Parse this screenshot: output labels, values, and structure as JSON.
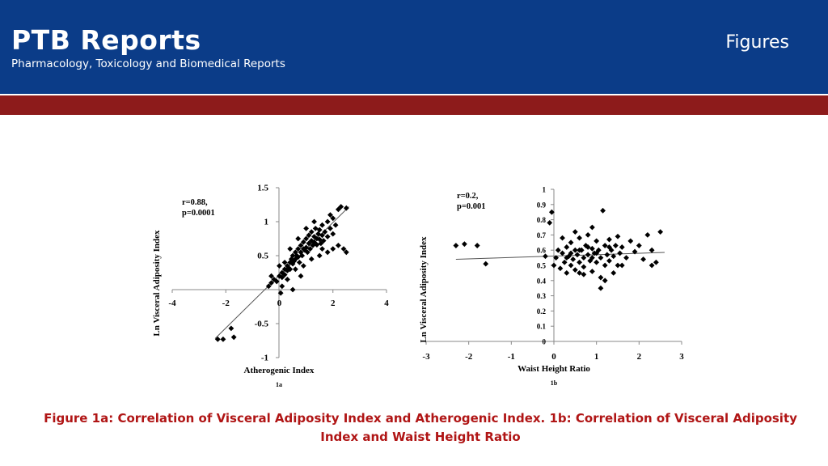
{
  "header": {
    "brand": "PTB Reports",
    "subtitle": "Pharmacology, Toxicology and Biomedical Reports",
    "section": "Figures"
  },
  "caption": "Figure 1a: Correlation of Visceral Adiposity Index and Atherogenic Index. 1b: Correlation of Visceral Adiposity Index and Waist Height Ratio",
  "colors": {
    "header_bg": "#0b3c88",
    "band": "#8d1b1b",
    "caption": "#b01515"
  },
  "chart_data": [
    {
      "type": "scatter",
      "panel_label": "1a",
      "xlabel": "Atherogenic Index",
      "ylabel": "Ln Visceral Adiposity Index",
      "annotation": [
        "r=0.88,",
        "p=0.0001"
      ],
      "xlim": [
        -4,
        4
      ],
      "ylim": [
        -1,
        1.5
      ],
      "xticks": [
        -4,
        -2,
        0,
        2,
        4
      ],
      "xtick_labels": [
        "-4",
        "-2",
        "0",
        "2",
        "4"
      ],
      "yticks": [
        -1,
        -0.5,
        0.5,
        1,
        1.5
      ],
      "ytick_labels": [
        "-1",
        "-0.5",
        "0.5",
        "1",
        "1.5"
      ],
      "trendline": {
        "x": [
          -2.4,
          2.6
        ],
        "y": [
          -0.72,
          1.22
        ]
      },
      "points": [
        [
          -2.3,
          -0.73
        ],
        [
          -2.1,
          -0.73
        ],
        [
          -1.8,
          -0.57
        ],
        [
          -1.7,
          -0.7
        ],
        [
          -0.4,
          0.05
        ],
        [
          -0.3,
          0.1
        ],
        [
          -0.2,
          0.15
        ],
        [
          -0.1,
          0.12
        ],
        [
          0.0,
          0.2
        ],
        [
          0.1,
          0.18
        ],
        [
          0.1,
          0.25
        ],
        [
          0.2,
          0.3
        ],
        [
          0.2,
          0.22
        ],
        [
          0.3,
          0.28
        ],
        [
          0.3,
          0.35
        ],
        [
          0.35,
          0.32
        ],
        [
          0.4,
          0.4
        ],
        [
          0.4,
          0.3
        ],
        [
          0.45,
          0.45
        ],
        [
          0.5,
          0.38
        ],
        [
          0.5,
          0.5
        ],
        [
          0.55,
          0.42
        ],
        [
          0.6,
          0.55
        ],
        [
          0.6,
          0.45
        ],
        [
          0.65,
          0.5
        ],
        [
          0.7,
          0.6
        ],
        [
          0.7,
          0.48
        ],
        [
          0.75,
          0.4
        ],
        [
          0.8,
          0.65
        ],
        [
          0.8,
          0.55
        ],
        [
          0.85,
          0.5
        ],
        [
          0.9,
          0.7
        ],
        [
          0.9,
          0.6
        ],
        [
          0.95,
          0.58
        ],
        [
          1.0,
          0.75
        ],
        [
          1.0,
          0.62
        ],
        [
          1.05,
          0.55
        ],
        [
          1.1,
          0.8
        ],
        [
          1.1,
          0.68
        ],
        [
          1.15,
          0.6
        ],
        [
          1.2,
          0.72
        ],
        [
          1.2,
          0.85
        ],
        [
          1.25,
          0.65
        ],
        [
          1.3,
          0.78
        ],
        [
          1.3,
          0.7
        ],
        [
          1.35,
          0.9
        ],
        [
          1.4,
          0.75
        ],
        [
          1.4,
          0.66
        ],
        [
          1.45,
          0.82
        ],
        [
          1.5,
          0.88
        ],
        [
          1.5,
          0.74
        ],
        [
          1.55,
          0.68
        ],
        [
          1.6,
          0.95
        ],
        [
          1.6,
          0.8
        ],
        [
          1.65,
          0.72
        ],
        [
          1.7,
          0.85
        ],
        [
          1.8,
          1.0
        ],
        [
          1.8,
          0.78
        ],
        [
          1.9,
          0.9
        ],
        [
          2.0,
          1.05
        ],
        [
          2.0,
          0.82
        ],
        [
          2.1,
          0.95
        ],
        [
          2.2,
          1.18
        ],
        [
          2.3,
          1.22
        ],
        [
          2.5,
          1.2
        ],
        [
          2.4,
          0.6
        ],
        [
          2.5,
          0.55
        ],
        [
          2.2,
          0.65
        ],
        [
          0.1,
          0.05
        ],
        [
          0.3,
          0.15
        ],
        [
          0.6,
          0.3
        ],
        [
          0.9,
          0.35
        ],
        [
          1.2,
          0.45
        ],
        [
          1.5,
          0.5
        ],
        [
          1.8,
          0.55
        ],
        [
          2.0,
          0.6
        ],
        [
          -0.3,
          0.2
        ],
        [
          0.0,
          0.35
        ],
        [
          0.4,
          0.6
        ],
        [
          0.7,
          0.75
        ],
        [
          1.0,
          0.9
        ],
        [
          1.3,
          1.0
        ],
        [
          1.9,
          1.1
        ],
        [
          0.5,
          0.0
        ],
        [
          0.8,
          0.2
        ],
        [
          0.2,
          0.4
        ],
        [
          1.6,
          0.6
        ],
        [
          0.05,
          -0.05
        ]
      ]
    },
    {
      "type": "scatter",
      "panel_label": "1b",
      "xlabel": "Waist Height Ratio",
      "ylabel": "Ln Visceral Adiposity Index",
      "annotation": [
        "r=0.2,",
        "p=0.001"
      ],
      "xlim": [
        -3,
        3
      ],
      "ylim": [
        0,
        1
      ],
      "xticks": [
        -3,
        -2,
        -1,
        0,
        1,
        2,
        3
      ],
      "xtick_labels": [
        "-3",
        "-2",
        "-1",
        "0",
        "1",
        "2",
        "3"
      ],
      "yticks": [
        0,
        0.1,
        0.2,
        0.3,
        0.4,
        0.5,
        0.6,
        0.7,
        0.8,
        0.9,
        1
      ],
      "ytick_labels": [
        "0",
        "0.1",
        "0.2",
        "0.3",
        "0.4",
        "0.5",
        "0.6",
        "0.7",
        "0.8",
        "0.9",
        "1"
      ],
      "trendline": {
        "x": [
          -2.3,
          2.6
        ],
        "y": [
          0.54,
          0.585
        ]
      },
      "points": [
        [
          -2.3,
          0.63
        ],
        [
          -2.1,
          0.64
        ],
        [
          -1.8,
          0.63
        ],
        [
          -1.6,
          0.51
        ],
        [
          -0.2,
          0.56
        ],
        [
          -0.1,
          0.78
        ],
        [
          -0.05,
          0.85
        ],
        [
          0.0,
          0.5
        ],
        [
          0.05,
          0.55
        ],
        [
          0.1,
          0.6
        ],
        [
          0.15,
          0.48
        ],
        [
          0.2,
          0.58
        ],
        [
          0.25,
          0.52
        ],
        [
          0.3,
          0.62
        ],
        [
          0.3,
          0.45
        ],
        [
          0.35,
          0.56
        ],
        [
          0.4,
          0.5
        ],
        [
          0.4,
          0.65
        ],
        [
          0.45,
          0.54
        ],
        [
          0.5,
          0.6
        ],
        [
          0.5,
          0.47
        ],
        [
          0.55,
          0.57
        ],
        [
          0.6,
          0.52
        ],
        [
          0.6,
          0.68
        ],
        [
          0.65,
          0.6
        ],
        [
          0.7,
          0.55
        ],
        [
          0.7,
          0.49
        ],
        [
          0.75,
          0.63
        ],
        [
          0.8,
          0.57
        ],
        [
          0.8,
          0.7
        ],
        [
          0.85,
          0.53
        ],
        [
          0.9,
          0.61
        ],
        [
          0.9,
          0.46
        ],
        [
          0.95,
          0.58
        ],
        [
          1.0,
          0.66
        ],
        [
          1.0,
          0.52
        ],
        [
          1.05,
          0.6
        ],
        [
          1.1,
          0.55
        ],
        [
          1.1,
          0.42
        ],
        [
          1.15,
          0.86
        ],
        [
          1.2,
          0.63
        ],
        [
          1.2,
          0.5
        ],
        [
          1.25,
          0.57
        ],
        [
          1.3,
          0.67
        ],
        [
          1.3,
          0.53
        ],
        [
          1.35,
          0.6
        ],
        [
          1.4,
          0.56
        ],
        [
          1.45,
          0.63
        ],
        [
          1.5,
          0.5
        ],
        [
          1.5,
          0.69
        ],
        [
          1.55,
          0.58
        ],
        [
          1.6,
          0.62
        ],
        [
          1.7,
          0.55
        ],
        [
          1.8,
          0.66
        ],
        [
          1.9,
          0.59
        ],
        [
          2.0,
          0.63
        ],
        [
          2.1,
          0.54
        ],
        [
          2.2,
          0.7
        ],
        [
          2.3,
          0.6
        ],
        [
          2.5,
          0.72
        ],
        [
          2.4,
          0.52
        ],
        [
          2.3,
          0.5
        ],
        [
          0.2,
          0.68
        ],
        [
          0.5,
          0.72
        ],
        [
          0.9,
          0.75
        ],
        [
          1.2,
          0.4
        ],
        [
          1.1,
          0.35
        ],
        [
          0.6,
          0.45
        ],
        [
          1.4,
          0.45
        ],
        [
          0.7,
          0.44
        ],
        [
          0.8,
          0.62
        ],
        [
          1.0,
          0.58
        ],
        [
          0.4,
          0.58
        ],
        [
          0.6,
          0.6
        ],
        [
          1.3,
          0.62
        ],
        [
          0.9,
          0.55
        ],
        [
          1.6,
          0.5
        ],
        [
          0.3,
          0.55
        ]
      ]
    }
  ]
}
